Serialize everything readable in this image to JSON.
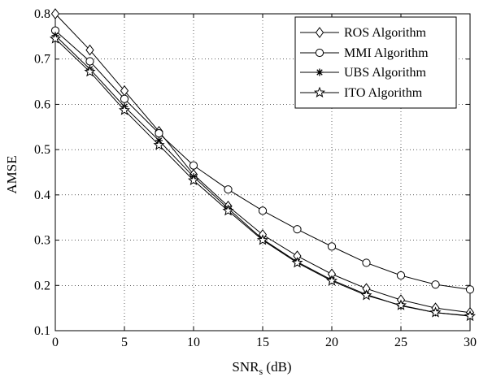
{
  "chart_data": {
    "type": "line",
    "title": "",
    "xlabel": "SNR",
    "xlabel_sub": "s",
    "xlabel_unit": " (dB)",
    "ylabel": "AMSE",
    "xlim": [
      0,
      30
    ],
    "ylim": [
      0.1,
      0.8
    ],
    "x_ticks": [
      0,
      5,
      10,
      15,
      20,
      25,
      30
    ],
    "x_tick_labels": [
      "0",
      "5",
      "10",
      "15",
      "20",
      "25",
      "30"
    ],
    "y_ticks": [
      0.1,
      0.2,
      0.3,
      0.4,
      0.5,
      0.6,
      0.7,
      0.8
    ],
    "y_tick_labels": [
      "0.1",
      "0.2",
      "0.3",
      "0.4",
      "0.5",
      "0.6",
      "0.7",
      "0.8"
    ],
    "grid": true,
    "legend_position": "top-right",
    "x": [
      0,
      2.5,
      5,
      7.5,
      10,
      12.5,
      15,
      17.5,
      20,
      22.5,
      25,
      27.5,
      30
    ],
    "series": [
      {
        "name": "ROS Algorithm",
        "marker": "diamond",
        "values": [
          0.8,
          0.72,
          0.63,
          0.54,
          0.445,
          0.375,
          0.312,
          0.265,
          0.225,
          0.193,
          0.168,
          0.15,
          0.14
        ]
      },
      {
        "name": "MMI Algorithm",
        "marker": "circle",
        "values": [
          0.763,
          0.695,
          0.612,
          0.536,
          0.465,
          0.412,
          0.365,
          0.324,
          0.286,
          0.25,
          0.222,
          0.202,
          0.191
        ]
      },
      {
        "name": "UBS Algorithm",
        "marker": "asterisk",
        "values": [
          0.752,
          0.678,
          0.595,
          0.52,
          0.44,
          0.37,
          0.302,
          0.252,
          0.212,
          0.18,
          0.155,
          0.14,
          0.133
        ]
      },
      {
        "name": "ITO Algorithm",
        "marker": "star",
        "values": [
          0.745,
          0.672,
          0.587,
          0.51,
          0.432,
          0.365,
          0.3,
          0.25,
          0.21,
          0.178,
          0.156,
          0.14,
          0.132
        ]
      }
    ]
  }
}
